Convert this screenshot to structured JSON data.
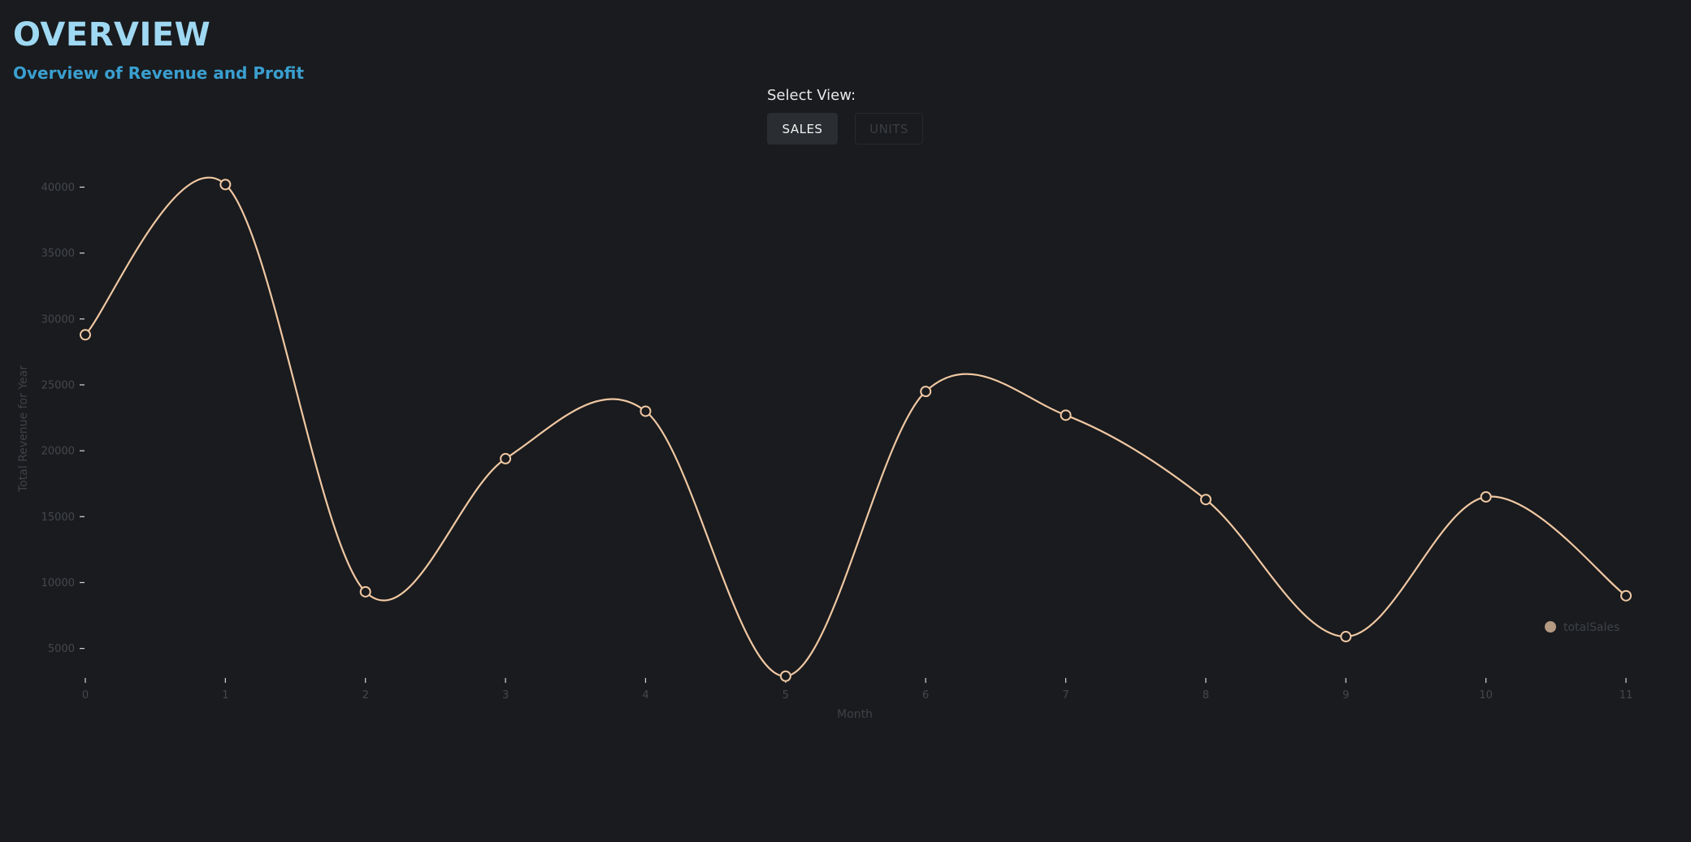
{
  "header": {
    "title": "OVERVIEW",
    "subtitle": "Overview of Revenue and Profit"
  },
  "view_selector": {
    "label": "Select View:",
    "options": [
      "SALES",
      "UNITS"
    ],
    "selected": "SALES"
  },
  "chart_data": {
    "type": "line",
    "curve": "smooth",
    "x": [
      0,
      1,
      2,
      3,
      4,
      5,
      6,
      7,
      8,
      9,
      10,
      11
    ],
    "series": [
      {
        "name": "totalSales",
        "values": [
          28800,
          40200,
          9300,
          19400,
          23000,
          2900,
          24500,
          22700,
          16300,
          5900,
          16500,
          9000
        ],
        "color": "#f0c7a2"
      }
    ],
    "xlabel": "Month",
    "ylabel": "Total Revenue for Year",
    "xticks": [
      "0",
      "1",
      "2",
      "3",
      "4",
      "5",
      "6",
      "7",
      "8",
      "9",
      "10",
      "11"
    ],
    "yticks": [
      "5000",
      "10000",
      "15000",
      "20000",
      "25000",
      "30000",
      "35000",
      "40000"
    ],
    "ylim": [
      2700,
      40400
    ],
    "grid": false,
    "legend": "bottom-right",
    "legend_color": "#b59a83",
    "axis_color": "#d7d7d7"
  }
}
